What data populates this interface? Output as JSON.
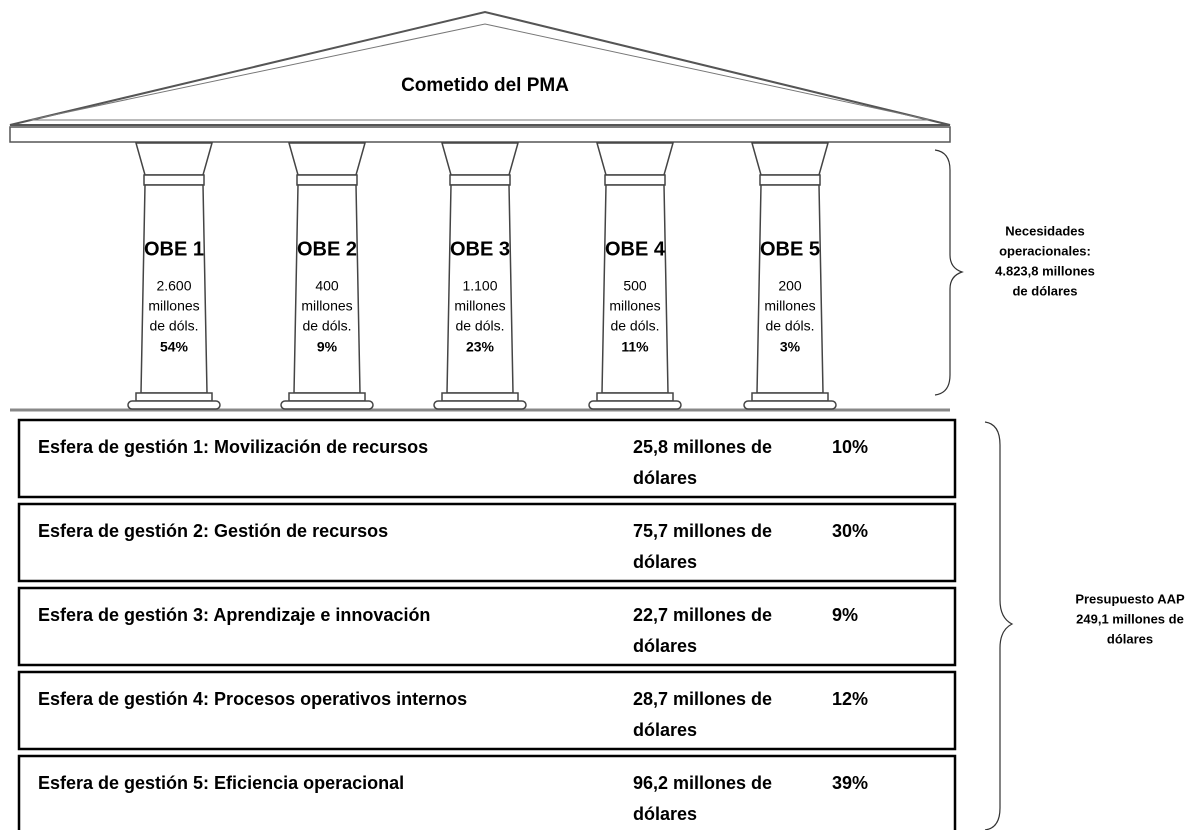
{
  "roof": {
    "title": "Cometido del PMA"
  },
  "pillars": [
    {
      "label": "OBE 1",
      "amount_lines": [
        "2.600",
        "millones",
        "de dóls."
      ],
      "share": "54%"
    },
    {
      "label": "OBE 2",
      "amount_lines": [
        "400",
        "millones",
        "de dóls."
      ],
      "share": "9%"
    },
    {
      "label": "OBE 3",
      "amount_lines": [
        "1.100",
        "millones",
        "de dóls."
      ],
      "share": "23%"
    },
    {
      "label": "OBE 4",
      "amount_lines": [
        "500",
        "millones",
        "de dóls."
      ],
      "share": "11%"
    },
    {
      "label": "OBE 5",
      "amount_lines": [
        "200",
        "millones",
        "de dóls."
      ],
      "share": "3%"
    }
  ],
  "pillars_note": {
    "lines": [
      "Necesidades",
      "operacionales:",
      "4.823,8 millones",
      "de dólares"
    ]
  },
  "spheres": [
    {
      "name": "Esfera de gestión 1: Movilización de recursos",
      "amount_lines": [
        "25,8 millones de",
        "dólares"
      ],
      "share": "10%"
    },
    {
      "name": "Esfera de gestión 2: Gestión de recursos",
      "amount_lines": [
        "75,7 millones de",
        "dólares"
      ],
      "share": "30%"
    },
    {
      "name": "Esfera de gestión 3: Aprendizaje e innovación",
      "amount_lines": [
        "22,7 millones de",
        "dólares"
      ],
      "share": "9%"
    },
    {
      "name": "Esfera de gestión 4: Procesos operativos internos",
      "amount_lines": [
        "28,7 millones de",
        "dólares"
      ],
      "share": "12%"
    },
    {
      "name": "Esfera de gestión 5: Eficiencia operacional",
      "amount_lines": [
        "96,2 millones de",
        "dólares"
      ],
      "share": "39%"
    }
  ],
  "spheres_note": {
    "lines": [
      "Presupuesto AAP",
      "249,1 millones de",
      "dólares"
    ]
  }
}
